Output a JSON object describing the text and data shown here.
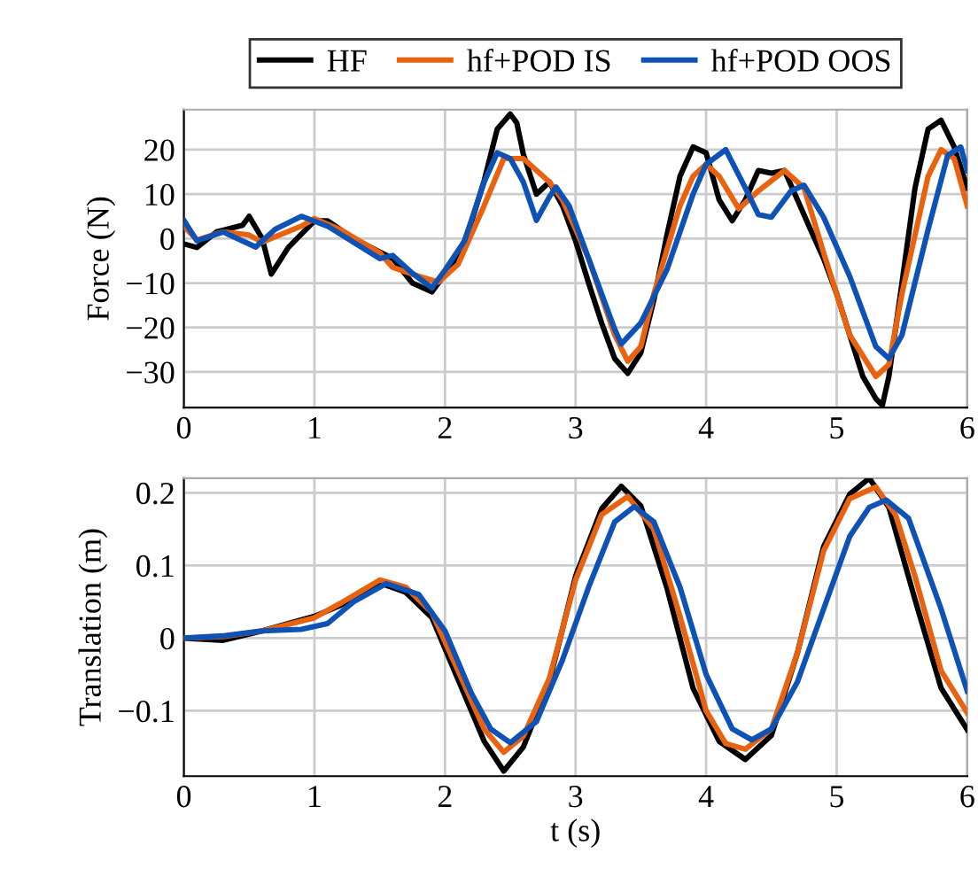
{
  "chart_data": [
    {
      "type": "line",
      "ylabel": "Force (N)",
      "xlim": [
        0,
        6
      ],
      "ylim": [
        -38,
        29
      ],
      "xticks": [
        0,
        1,
        2,
        3,
        4,
        5,
        6
      ],
      "yticks": [
        {
          "value": -30,
          "label": "−30"
        },
        {
          "value": -20,
          "label": "−20"
        },
        {
          "value": -10,
          "label": "−10"
        },
        0,
        10,
        20
      ],
      "grid": true,
      "legend": "top",
      "line_style": "solid",
      "series": [
        {
          "name": "HF",
          "color": "#000000",
          "x": [
            0,
            0.1,
            0.25,
            0.45,
            0.5,
            0.6,
            0.67,
            0.8,
            1.0,
            1.1,
            1.3,
            1.5,
            1.6,
            1.75,
            1.9,
            2.0,
            2.1,
            2.2,
            2.3,
            2.4,
            2.5,
            2.55,
            2.6,
            2.7,
            2.8,
            2.9,
            3.0,
            3.1,
            3.2,
            3.3,
            3.4,
            3.5,
            3.6,
            3.7,
            3.8,
            3.9,
            4.0,
            4.1,
            4.2,
            4.3,
            4.4,
            4.5,
            4.6,
            4.7,
            4.8,
            4.9,
            5.0,
            5.1,
            5.2,
            5.3,
            5.35,
            5.4,
            5.5,
            5.6,
            5.7,
            5.8,
            5.9,
            6.0
          ],
          "values": [
            -1.2,
            -2,
            1.5,
            3,
            5,
            0,
            -8,
            -2,
            4,
            4,
            0,
            -3,
            -4.5,
            -10,
            -12,
            -8,
            -4.5,
            3.5,
            13,
            24.6,
            28,
            26,
            19,
            10,
            12.7,
            7.4,
            -0.5,
            -10,
            -19,
            -27,
            -30.3,
            -25.7,
            -13.8,
            0.8,
            14,
            20.6,
            19.3,
            8.7,
            4,
            8.7,
            15.3,
            14.7,
            15.3,
            8.7,
            2,
            -4.5,
            -12.4,
            -21.7,
            -31,
            -36,
            -37.5,
            -31,
            -10,
            11.4,
            24.6,
            26.6,
            20.6,
            11.4
          ]
        },
        {
          "name": "hf+POD IS",
          "color": "#e8620f",
          "x": [
            0,
            0.1,
            0.3,
            0.5,
            0.6,
            0.9,
            1.0,
            1.2,
            1.5,
            1.6,
            1.8,
            1.95,
            2.1,
            2.3,
            2.45,
            2.6,
            2.8,
            2.9,
            3.1,
            3.3,
            3.4,
            3.5,
            3.6,
            3.8,
            3.9,
            4.0,
            4.1,
            4.25,
            4.4,
            4.6,
            4.75,
            4.9,
            5.1,
            5.3,
            5.4,
            5.5,
            5.7,
            5.8,
            5.9,
            6.0
          ],
          "values": [
            2.8,
            -0.3,
            1.5,
            0.8,
            -0.8,
            2.8,
            4.5,
            2,
            -3.2,
            -6.5,
            -8.5,
            -9.8,
            -5.8,
            7.4,
            18,
            18,
            12.7,
            8.7,
            -4.5,
            -21.7,
            -27.6,
            -24.3,
            -12.4,
            7.4,
            14,
            16.7,
            14,
            6.7,
            10.7,
            15.3,
            11.4,
            -3.2,
            -21.7,
            -31,
            -28.3,
            -12.4,
            14,
            20,
            18,
            7.4
          ]
        },
        {
          "name": "hf+POD OOS",
          "color": "#0e52b5",
          "x": [
            0,
            0.1,
            0.3,
            0.55,
            0.7,
            0.9,
            1.1,
            1.5,
            1.6,
            1.75,
            1.9,
            2.0,
            2.15,
            2.3,
            2.4,
            2.5,
            2.6,
            2.7,
            2.8,
            2.85,
            2.95,
            3.1,
            3.3,
            3.35,
            3.5,
            3.7,
            3.9,
            4.0,
            4.15,
            4.3,
            4.4,
            4.5,
            4.65,
            4.75,
            4.9,
            5.1,
            5.3,
            5.4,
            5.5,
            5.7,
            5.85,
            5.95,
            6.0
          ],
          "values": [
            4.1,
            -0.5,
            1.5,
            -1.9,
            2.1,
            5,
            2.8,
            -4.5,
            -3.8,
            -7.8,
            -11.1,
            -7.1,
            -0.5,
            12.7,
            19.3,
            18,
            12.7,
            4.1,
            9.4,
            11.6,
            7.4,
            -4.5,
            -20.4,
            -23.7,
            -19,
            -7,
            10,
            16.7,
            20,
            11.4,
            5.4,
            4.8,
            10.7,
            12,
            4.8,
            -8.5,
            -24.3,
            -27,
            -21.7,
            2,
            18.7,
            20.6,
            15.3
          ]
        }
      ]
    },
    {
      "type": "line",
      "xlabel": "t (s)",
      "ylabel": "Translation (m)",
      "xlim": [
        0,
        6
      ],
      "ylim": [
        -0.19,
        0.22
      ],
      "xticks": [
        0,
        1,
        2,
        3,
        4,
        5,
        6
      ],
      "yticks": [
        {
          "value": -0.1,
          "label": "−0.1"
        },
        0,
        0.1,
        0.2
      ],
      "grid": true,
      "line_style": "solid",
      "series": [
        {
          "color": "#000000",
          "x": [
            0,
            0.3,
            0.6,
            1.0,
            1.2,
            1.5,
            1.7,
            1.9,
            2.1,
            2.3,
            2.45,
            2.6,
            2.8,
            3.0,
            3.2,
            3.35,
            3.5,
            3.7,
            3.9,
            4.1,
            4.3,
            4.5,
            4.7,
            4.9,
            5.1,
            5.25,
            5.4,
            5.6,
            5.8,
            6.0
          ],
          "values": [
            0,
            -0.003,
            0.01,
            0.03,
            0.045,
            0.076,
            0.063,
            0.028,
            -0.057,
            -0.142,
            -0.183,
            -0.15,
            -0.06,
            0.085,
            0.178,
            0.209,
            0.182,
            0.069,
            -0.069,
            -0.142,
            -0.167,
            -0.134,
            -0.02,
            0.126,
            0.198,
            0.22,
            0.18,
            0.053,
            -0.069,
            -0.126
          ]
        },
        {
          "color": "#e8620f",
          "x": [
            0,
            0.3,
            0.6,
            1.0,
            1.2,
            1.5,
            1.7,
            1.9,
            2.1,
            2.3,
            2.45,
            2.6,
            2.8,
            3.0,
            3.2,
            3.4,
            3.6,
            3.8,
            4.0,
            4.15,
            4.3,
            4.5,
            4.7,
            4.9,
            5.1,
            5.3,
            5.45,
            5.6,
            5.8,
            6.0
          ],
          "values": [
            0,
            0.002,
            0.01,
            0.028,
            0.048,
            0.08,
            0.07,
            0.035,
            -0.045,
            -0.125,
            -0.157,
            -0.135,
            -0.055,
            0.08,
            0.17,
            0.195,
            0.15,
            0.03,
            -0.1,
            -0.145,
            -0.153,
            -0.125,
            -0.02,
            0.12,
            0.192,
            0.208,
            0.17,
            0.085,
            -0.045,
            -0.103
          ]
        },
        {
          "color": "#0e52b5",
          "x": [
            0,
            0.3,
            0.6,
            0.9,
            1.1,
            1.3,
            1.55,
            1.8,
            2.0,
            2.2,
            2.35,
            2.5,
            2.7,
            2.9,
            3.1,
            3.3,
            3.45,
            3.6,
            3.8,
            4.0,
            4.2,
            4.35,
            4.5,
            4.7,
            4.9,
            5.1,
            5.25,
            5.38,
            5.55,
            5.8,
            6.0
          ],
          "values": [
            0,
            0.003,
            0.01,
            0.012,
            0.02,
            0.05,
            0.075,
            0.06,
            0.01,
            -0.075,
            -0.125,
            -0.144,
            -0.115,
            -0.03,
            0.07,
            0.16,
            0.181,
            0.16,
            0.07,
            -0.05,
            -0.125,
            -0.14,
            -0.125,
            -0.06,
            0.04,
            0.14,
            0.18,
            0.19,
            0.165,
            0.04,
            -0.073
          ]
        }
      ]
    }
  ]
}
